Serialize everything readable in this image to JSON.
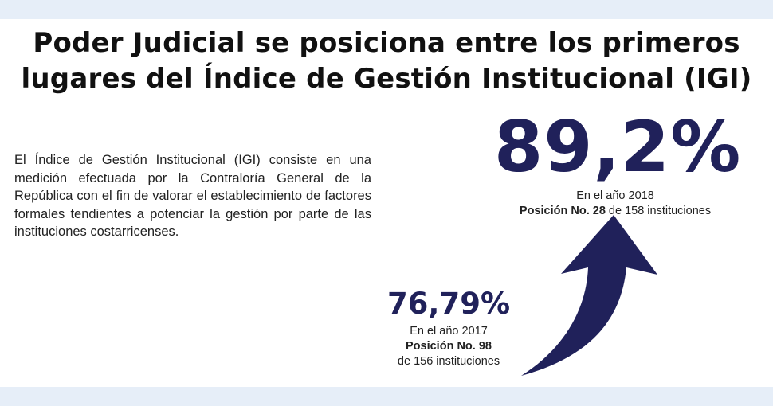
{
  "title": {
    "line1": "Poder Judicial se posiciona entre los primeros",
    "line2": "lugares del Índice de Gestión Institucional (IGI)"
  },
  "description": "El Índice de Gestión Institucional (IGI) consiste en una medición efectuada por la Contraloría General de la República  con el fin de valorar el establecimiento de factores formales tendientes a potenciar la gestión por parte de las instituciones costarricenses.",
  "stat_2018": {
    "value": "89,2%",
    "year_text": "En el  año 2018",
    "position_label": "Posición No. 28",
    "position_rest": " de 158 instituciones"
  },
  "stat_2017": {
    "value": "76,79%",
    "year_text": "En el año 2017",
    "position_label": "Posición No. 98",
    "institutions": "de 156 instituciones"
  },
  "colors": {
    "accent": "#20215a",
    "band": "#e6eef8"
  },
  "icons": {
    "arrow": "curved-up-arrow-icon"
  }
}
